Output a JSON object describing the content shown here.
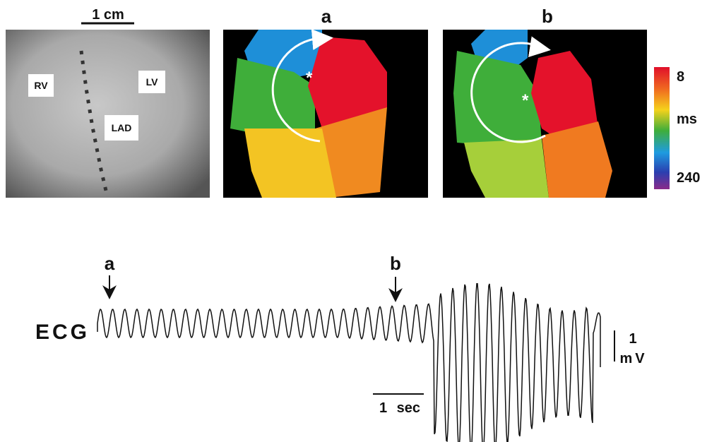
{
  "figure": {
    "anatomy_panel": {
      "scale_label": "1 cm",
      "labels": {
        "rv": "RV",
        "lv": "LV",
        "lad": "LAD"
      }
    },
    "map_panels": [
      {
        "label": "a"
      },
      {
        "label": "b"
      }
    ],
    "color_scale": {
      "top": 8,
      "unit": "ms",
      "bottom": 240
    },
    "ecg": {
      "label": "ECG",
      "markers": [
        "a",
        "b"
      ],
      "time_scale": "1 sec",
      "amplitude_scale": {
        "value": "1",
        "unit": "mV"
      }
    }
  }
}
